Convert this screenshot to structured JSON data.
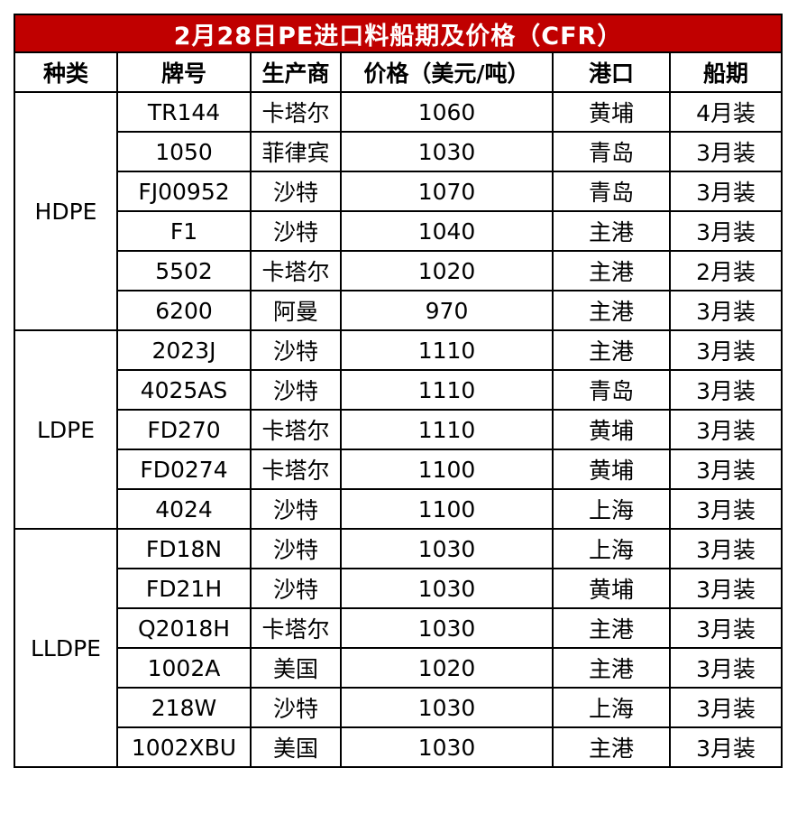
{
  "title": "2月28日PE进口料船期及价格（CFR）",
  "headers": [
    "种类",
    "牌号",
    "生产商",
    "价格（美元/吨）",
    "港口",
    "船期"
  ],
  "groups": [
    {
      "name": "HDPE",
      "rows": [
        [
          "TR144",
          "卡塔尔",
          "1060",
          "黄埔",
          "4月装"
        ],
        [
          "1050",
          "菲律宾",
          "1030",
          "青岛",
          "3月装"
        ],
        [
          "FJ00952",
          "沙特",
          "1070",
          "青岛",
          "3月装"
        ],
        [
          "F1",
          "沙特",
          "1040",
          "主港",
          "3月装"
        ],
        [
          "5502",
          "卡塔尔",
          "1020",
          "主港",
          "2月装"
        ],
        [
          "6200",
          "阿曼",
          "970",
          "主港",
          "3月装"
        ]
      ]
    },
    {
      "name": "LDPE",
      "rows": [
        [
          "2023J",
          "沙特",
          "1110",
          "主港",
          "3月装"
        ],
        [
          "4025AS",
          "沙特",
          "1110",
          "青岛",
          "3月装"
        ],
        [
          "FD270",
          "卡塔尔",
          "1110",
          "黄埔",
          "3月装"
        ],
        [
          "FD0274",
          "卡塔尔",
          "1100",
          "黄埔",
          "3月装"
        ],
        [
          "4024",
          "沙特",
          "1100",
          "上海",
          "3月装"
        ]
      ]
    },
    {
      "name": "LLDPE",
      "rows": [
        [
          "FD18N",
          "沙特",
          "1030",
          "上海",
          "3月装"
        ],
        [
          "FD21H",
          "沙特",
          "1030",
          "黄埔",
          "3月装"
        ],
        [
          "Q2018H",
          "卡塔尔",
          "1030",
          "主港",
          "3月装"
        ],
        [
          "1002A",
          "美国",
          "1020",
          "主港",
          "3月装"
        ],
        [
          "218W",
          "沙特",
          "1030",
          "上海",
          "3月装"
        ],
        [
          "1002XBU",
          "美国",
          "1030",
          "主港",
          "3月装"
        ]
      ]
    }
  ]
}
